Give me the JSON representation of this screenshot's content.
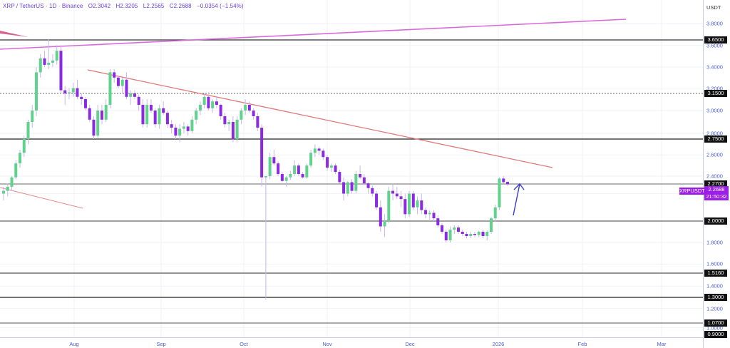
{
  "legend": {
    "symbol": "XRP / TetherUS · 1D · Binance",
    "open": "O2.3042",
    "high": "H2.3205",
    "low": "L2.2565",
    "close": "C2.2688",
    "change": "−0.0354 (−1.54%)"
  },
  "axis": {
    "currency": "USDT",
    "y_ticks": [
      "3.8000",
      "3.6000",
      "3.4000",
      "3.2000",
      "3.0000",
      "2.8000",
      "2.6000",
      "2.4000",
      "1.8000",
      "1.6000",
      "1.4000",
      "1.2000",
      "1.0000"
    ],
    "x_ticks": [
      "Aug",
      "Sep",
      "Oct",
      "Nov",
      "Dec",
      "2026",
      "Feb",
      "Mar"
    ]
  },
  "price_tag": {
    "symbol": "XRPUSDT",
    "price": "2.2688",
    "countdown": "21:50:32"
  },
  "levels": [
    {
      "label": "3.6500",
      "price": 3.65,
      "style": "solid",
      "color": "#333"
    },
    {
      "label": "3.1500",
      "price": 3.15,
      "style": "dotted",
      "color": "#666"
    },
    {
      "label": "2.7500",
      "price": 2.75,
      "style": "solid",
      "color": "#222"
    },
    {
      "label": "2.2700",
      "price": 2.27,
      "style": "solid",
      "color": "#888"
    },
    {
      "label": "2.0000",
      "price": 2.0,
      "style": "solid",
      "color": "#666"
    },
    {
      "label": "1.5160",
      "price": 1.516,
      "style": "solid",
      "color": "#555"
    },
    {
      "label": "1.3000",
      "price": 1.3,
      "style": "solid",
      "color": "#222"
    },
    {
      "label": "1.0700",
      "price": 1.07,
      "style": "solid",
      "color": "#777"
    },
    {
      "label": "0.9000",
      "price": 0.9,
      "style": "none",
      "color": "#000"
    }
  ],
  "colors": {
    "up": "#5fd38b",
    "down": "#8a2be2",
    "wick": "#c8b5f0",
    "trend_down": "#e07a7a",
    "trend_up": "#d96ad9",
    "arrow": "#3a3ad0",
    "grid": "#f0f2f8"
  },
  "chart_data": {
    "type": "candlestick",
    "title": "XRP / TetherUS · 1D · Binance",
    "ylabel": "USDT",
    "ylim": [
      0.88,
      3.88
    ],
    "x_ticks": [
      "Aug",
      "Sep",
      "Oct",
      "Nov",
      "Dec",
      "2026",
      "Feb",
      "Mar"
    ],
    "horizontal_levels": [
      3.65,
      3.15,
      2.75,
      2.27,
      2.0,
      1.516,
      1.3,
      1.07,
      0.9
    ],
    "last": {
      "open": 2.3042,
      "high": 2.3205,
      "low": 2.2565,
      "close": 2.2688,
      "change": -0.0354,
      "change_pct": -1.54
    },
    "candles": [
      [
        2.2,
        2.25,
        2.15,
        2.22
      ],
      [
        2.22,
        2.28,
        2.18,
        2.25
      ],
      [
        2.25,
        2.4,
        2.22,
        2.38
      ],
      [
        2.38,
        2.55,
        2.35,
        2.52
      ],
      [
        2.52,
        2.65,
        2.48,
        2.62
      ],
      [
        2.62,
        2.78,
        2.58,
        2.75
      ],
      [
        2.75,
        2.92,
        2.7,
        2.9
      ],
      [
        2.9,
        3.05,
        2.85,
        3.0
      ],
      [
        3.0,
        3.4,
        2.95,
        3.35
      ],
      [
        3.35,
        3.52,
        3.3,
        3.48
      ],
      [
        3.48,
        3.55,
        3.4,
        3.42
      ],
      [
        3.42,
        3.66,
        3.38,
        3.44
      ],
      [
        3.44,
        3.52,
        3.4,
        3.46
      ],
      [
        3.46,
        3.6,
        3.42,
        3.55
      ],
      [
        3.55,
        3.6,
        3.15,
        3.18
      ],
      [
        3.18,
        3.22,
        3.05,
        3.15
      ],
      [
        3.15,
        3.2,
        3.1,
        3.16
      ],
      [
        3.16,
        3.25,
        3.12,
        3.2
      ],
      [
        3.2,
        3.28,
        3.1,
        3.12
      ],
      [
        3.12,
        3.15,
        3.05,
        3.1
      ],
      [
        3.1,
        3.12,
        3.0,
        3.02
      ],
      [
        3.02,
        3.05,
        2.9,
        2.92
      ],
      [
        2.92,
        2.95,
        2.75,
        2.78
      ],
      [
        2.78,
        3.05,
        2.76,
        3.0
      ],
      [
        3.0,
        3.05,
        2.88,
        2.92
      ],
      [
        2.92,
        3.1,
        2.9,
        3.05
      ],
      [
        3.05,
        3.38,
        3.02,
        3.35
      ],
      [
        3.35,
        3.38,
        3.25,
        3.3
      ],
      [
        3.3,
        3.32,
        3.2,
        3.22
      ],
      [
        3.22,
        3.3,
        3.15,
        3.28
      ],
      [
        3.28,
        3.35,
        3.1,
        3.12
      ],
      [
        3.12,
        3.18,
        3.05,
        3.15
      ],
      [
        3.15,
        3.18,
        3.1,
        3.12
      ],
      [
        3.12,
        3.14,
        3.0,
        3.05
      ],
      [
        3.05,
        3.1,
        2.85,
        2.88
      ],
      [
        2.88,
        3.1,
        2.85,
        3.05
      ],
      [
        3.05,
        3.1,
        2.98,
        3.0
      ],
      [
        3.0,
        3.02,
        2.85,
        2.88
      ],
      [
        2.88,
        3.05,
        2.84,
        3.02
      ],
      [
        3.02,
        3.08,
        2.96,
        2.98
      ],
      [
        2.98,
        3.0,
        2.85,
        2.88
      ],
      [
        2.88,
        2.92,
        2.8,
        2.85
      ],
      [
        2.85,
        2.88,
        2.75,
        2.78
      ],
      [
        2.78,
        2.88,
        2.72,
        2.84
      ],
      [
        2.84,
        2.9,
        2.8,
        2.86
      ],
      [
        2.86,
        2.88,
        2.78,
        2.82
      ],
      [
        2.82,
        2.95,
        2.8,
        2.92
      ],
      [
        2.92,
        3.02,
        2.88,
        3.0
      ],
      [
        3.0,
        3.08,
        2.96,
        3.05
      ],
      [
        3.05,
        3.15,
        3.02,
        3.12
      ],
      [
        3.12,
        3.16,
        3.0,
        3.02
      ],
      [
        3.02,
        3.1,
        2.98,
        3.08
      ],
      [
        3.08,
        3.12,
        3.02,
        3.05
      ],
      [
        3.05,
        3.06,
        2.92,
        2.95
      ],
      [
        2.95,
        2.98,
        2.85,
        2.88
      ],
      [
        2.88,
        2.92,
        2.82,
        2.9
      ],
      [
        2.9,
        2.95,
        2.72,
        2.75
      ],
      [
        2.75,
        2.95,
        2.72,
        2.92
      ],
      [
        2.92,
        3.02,
        2.88,
        3.0
      ],
      [
        3.0,
        3.1,
        2.96,
        3.05
      ],
      [
        3.05,
        3.08,
        2.98,
        3.0
      ],
      [
        3.0,
        3.02,
        2.92,
        2.95
      ],
      [
        2.95,
        2.98,
        2.82,
        2.85
      ],
      [
        2.85,
        2.88,
        2.25,
        2.38
      ],
      [
        2.38,
        2.4,
        1.28,
        2.4
      ],
      [
        2.4,
        2.62,
        2.35,
        2.58
      ],
      [
        2.58,
        2.65,
        2.5,
        2.52
      ],
      [
        2.52,
        2.54,
        2.4,
        2.42
      ],
      [
        2.42,
        2.44,
        2.3,
        2.32
      ],
      [
        2.32,
        2.4,
        2.25,
        2.38
      ],
      [
        2.38,
        2.45,
        2.34,
        2.42
      ],
      [
        2.42,
        2.55,
        2.4,
        2.5
      ],
      [
        2.5,
        2.52,
        2.4,
        2.42
      ],
      [
        2.42,
        2.44,
        2.36,
        2.38
      ],
      [
        2.38,
        2.52,
        2.36,
        2.5
      ],
      [
        2.5,
        2.65,
        2.48,
        2.62
      ],
      [
        2.62,
        2.7,
        2.58,
        2.66
      ],
      [
        2.66,
        2.68,
        2.6,
        2.64
      ],
      [
        2.64,
        2.66,
        2.55,
        2.58
      ],
      [
        2.58,
        2.6,
        2.45,
        2.48
      ],
      [
        2.48,
        2.52,
        2.44,
        2.5
      ],
      [
        2.5,
        2.52,
        2.42,
        2.44
      ],
      [
        2.44,
        2.46,
        2.28,
        2.3
      ],
      [
        2.3,
        2.38,
        2.15,
        2.2
      ],
      [
        2.2,
        2.32,
        2.18,
        2.3
      ],
      [
        2.3,
        2.35,
        2.2,
        2.22
      ],
      [
        2.22,
        2.45,
        2.2,
        2.42
      ],
      [
        2.42,
        2.5,
        2.35,
        2.38
      ],
      [
        2.38,
        2.42,
        2.26,
        2.28
      ],
      [
        2.28,
        2.3,
        2.2,
        2.24
      ],
      [
        2.24,
        2.26,
        2.18,
        2.2
      ],
      [
        2.2,
        2.22,
        2.08,
        2.1
      ],
      [
        2.1,
        2.15,
        1.9,
        1.95
      ],
      [
        1.95,
        2.05,
        1.85,
        2.0
      ],
      [
        2.0,
        2.25,
        1.98,
        2.22
      ],
      [
        2.22,
        2.28,
        2.15,
        2.2
      ],
      [
        2.2,
        2.25,
        2.16,
        2.18
      ],
      [
        2.18,
        2.22,
        2.1,
        2.16
      ],
      [
        2.16,
        2.2,
        2.02,
        2.05
      ],
      [
        2.05,
        2.22,
        2.03,
        2.2
      ],
      [
        2.2,
        2.22,
        2.08,
        2.1
      ],
      [
        2.1,
        2.18,
        2.05,
        2.15
      ],
      [
        2.15,
        2.2,
        2.05,
        2.08
      ],
      [
        2.08,
        2.1,
        2.02,
        2.05
      ],
      [
        2.05,
        2.08,
        2.0,
        2.06
      ],
      [
        2.06,
        2.08,
        2.0,
        2.02
      ],
      [
        2.02,
        2.04,
        1.94,
        1.96
      ],
      [
        1.96,
        1.98,
        1.88,
        1.9
      ],
      [
        1.9,
        1.92,
        1.8,
        1.82
      ],
      [
        1.82,
        1.95,
        1.8,
        1.92
      ],
      [
        1.92,
        1.96,
        1.88,
        1.94
      ],
      [
        1.94,
        1.96,
        1.88,
        1.9
      ],
      [
        1.9,
        1.92,
        1.86,
        1.88
      ],
      [
        1.88,
        1.9,
        1.84,
        1.86
      ],
      [
        1.86,
        1.9,
        1.84,
        1.88
      ],
      [
        1.88,
        1.9,
        1.85,
        1.87
      ],
      [
        1.87,
        1.91,
        1.85,
        1.9
      ],
      [
        1.9,
        1.92,
        1.84,
        1.86
      ],
      [
        1.86,
        1.91,
        1.82,
        1.9
      ],
      [
        1.9,
        2.03,
        1.88,
        2.02
      ],
      [
        2.02,
        2.12,
        1.99,
        2.1
      ],
      [
        2.1,
        2.38,
        2.08,
        2.36
      ],
      [
        2.36,
        2.4,
        2.28,
        2.3
      ],
      [
        2.3042,
        2.3205,
        2.2565,
        2.2688
      ]
    ]
  }
}
